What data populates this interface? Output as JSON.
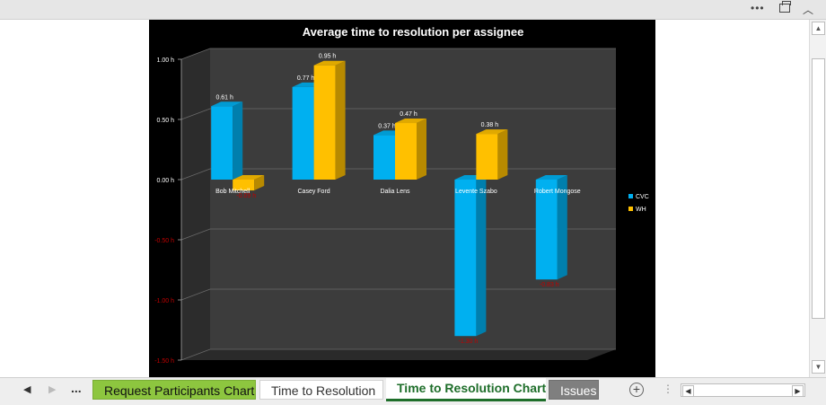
{
  "window": {
    "more_icon": "ellipsis-icon",
    "restore_icon": "restore-icon",
    "collapse_icon": "chevron-up-icon"
  },
  "tabs": {
    "prev_label": "◀",
    "next_label": "▶",
    "more_label": "...",
    "items": [
      {
        "label": "Request Participants Chart",
        "style": "green"
      },
      {
        "label": "Time to Resolution",
        "style": "plain"
      },
      {
        "label": "Time to Resolution Chart",
        "style": "active"
      },
      {
        "label": "Issues",
        "style": "gray"
      }
    ],
    "add_label": "+"
  },
  "colors": {
    "cvc": "#00b0f0",
    "wh": "#ffc000",
    "negative_label": "#c00000"
  },
  "chart_data": {
    "type": "bar",
    "title": "Average time to resolution per assignee",
    "categories": [
      "Bob Mitchell",
      "Casey Ford",
      "Dalia Lens",
      "Levente Szabo",
      "Robert Mongose"
    ],
    "series": [
      {
        "name": "CVC",
        "values": [
          0.61,
          0.77,
          0.37,
          -1.3,
          -0.83
        ],
        "labels": [
          "0.61 h",
          "0.77 h",
          "0.37 h",
          "-1.30 h",
          "-0.83 h"
        ]
      },
      {
        "name": "WH",
        "values": [
          -0.09,
          0.95,
          0.47,
          0.38,
          null
        ],
        "labels": [
          "-0.09 h",
          "0.95 h",
          "0.47 h",
          "0.38 h",
          ""
        ]
      }
    ],
    "yticks": [
      "1.00 h",
      "0.50 h",
      "0.00 h",
      "-0.50 h",
      "-1.00 h",
      "-1.50 h"
    ],
    "ylim": [
      -1.5,
      1.0
    ],
    "legend_position": "right",
    "grid": true
  }
}
